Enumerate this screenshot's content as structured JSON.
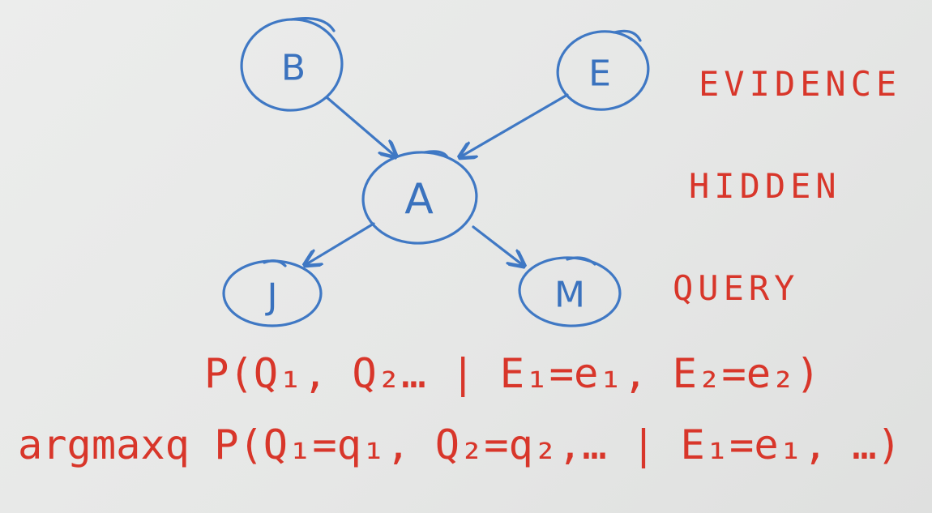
{
  "colors": {
    "node_ink": "#3f78c4",
    "text_ink": "#d8362a",
    "board": "#e8e9e8"
  },
  "nodes": {
    "b": {
      "label": "B"
    },
    "e": {
      "label": "E"
    },
    "a": {
      "label": "A"
    },
    "j": {
      "label": "J"
    },
    "m": {
      "label": "M"
    }
  },
  "edges": [
    {
      "from": "B",
      "to": "A"
    },
    {
      "from": "E",
      "to": "A"
    },
    {
      "from": "A",
      "to": "J"
    },
    {
      "from": "A",
      "to": "M"
    }
  ],
  "labels": {
    "evidence": "EVIDENCE",
    "hidden": "HIDDEN",
    "query": "QUERY"
  },
  "formulas": {
    "line1": "P(Q₁, Q₂… | E₁=e₁, E₂=e₂)",
    "line2": "argmaxq P(Q₁=q₁, Q₂=q₂,… | E₁=e₁, …)"
  }
}
